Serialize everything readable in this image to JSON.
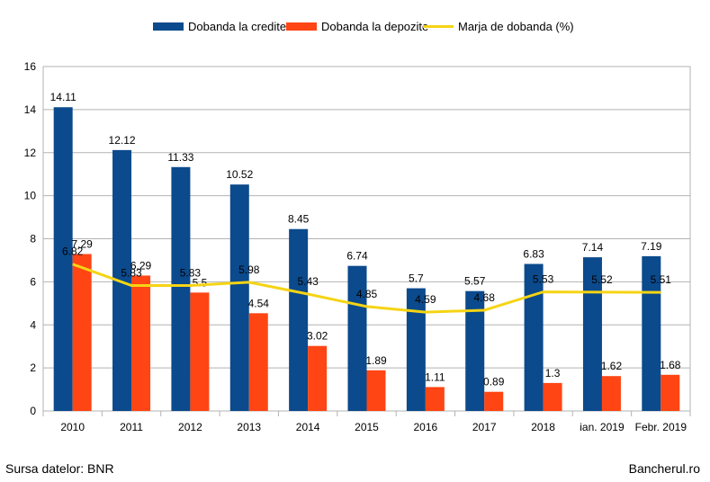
{
  "chart_data": {
    "type": "bar",
    "categories": [
      "2010",
      "2011",
      "2012",
      "2013",
      "2014",
      "2015",
      "2016",
      "2017",
      "2018",
      "ian. 2019",
      "Febr. 2019"
    ],
    "series": [
      {
        "name": "Dobanda la credite",
        "kind": "bar",
        "color": "#0b4a8c",
        "values": [
          14.11,
          12.12,
          11.33,
          10.52,
          8.45,
          6.74,
          5.7,
          5.57,
          6.83,
          7.14,
          7.19
        ]
      },
      {
        "name": "Dobanda la depozite",
        "kind": "bar",
        "color": "#ff4514",
        "values": [
          7.29,
          6.29,
          5.5,
          4.54,
          3.02,
          1.89,
          1.11,
          0.89,
          1.3,
          1.62,
          1.68
        ]
      },
      {
        "name": "Marja de dobanda (%)",
        "kind": "line",
        "color": "#f5d414",
        "values": [
          6.82,
          5.83,
          5.83,
          5.98,
          5.43,
          4.85,
          4.59,
          4.68,
          5.53,
          5.52,
          5.51
        ]
      }
    ],
    "ylim": [
      0,
      16
    ],
    "yticks": [
      0,
      2,
      4,
      6,
      8,
      10,
      12,
      14,
      16
    ],
    "grid": true,
    "legend_position": "top"
  },
  "footer": {
    "source": "Sursa datelor: BNR",
    "brand": "Bancherul.ro"
  }
}
